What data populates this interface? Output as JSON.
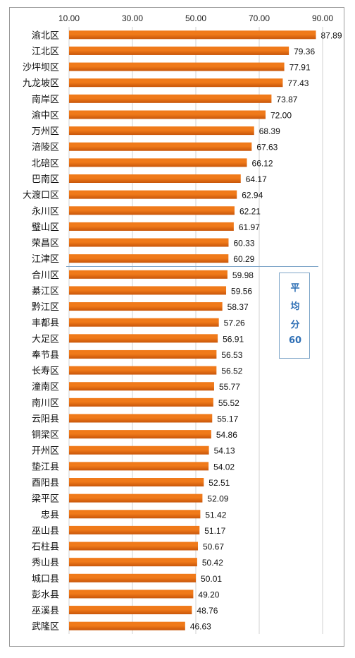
{
  "chart_data": {
    "type": "bar",
    "orientation": "horizontal",
    "categories": [
      "渝北区",
      "江北区",
      "沙坪坝区",
      "九龙坡区",
      "南岸区",
      "渝中区",
      "万州区",
      "涪陵区",
      "北碚区",
      "巴南区",
      "大渡口区",
      "永川区",
      "璧山区",
      "荣昌区",
      "江津区",
      "合川区",
      "綦江区",
      "黔江区",
      "丰都县",
      "大足区",
      "奉节县",
      "长寿区",
      "潼南区",
      "南川区",
      "云阳县",
      "铜梁区",
      "开州区",
      "垫江县",
      "酉阳县",
      "梁平区",
      "忠县",
      "巫山县",
      "石柱县",
      "秀山县",
      "城口县",
      "彭水县",
      "巫溪县",
      "武隆区"
    ],
    "values": [
      87.89,
      79.36,
      77.91,
      77.43,
      73.87,
      72.0,
      68.39,
      67.63,
      66.12,
      64.17,
      62.94,
      62.21,
      61.97,
      60.33,
      60.29,
      59.98,
      59.56,
      58.37,
      57.26,
      56.91,
      56.53,
      56.52,
      55.77,
      55.52,
      55.17,
      54.86,
      54.13,
      54.02,
      52.51,
      52.09,
      51.42,
      51.17,
      50.67,
      50.42,
      50.01,
      49.2,
      48.76,
      46.63
    ],
    "value_labels": [
      "87.89",
      "79.36",
      "77.91",
      "77.43",
      "73.87",
      "72.00",
      "68.39",
      "67.63",
      "66.12",
      "64.17",
      "62.94",
      "62.21",
      "61.97",
      "60.33",
      "60.29",
      "59.98",
      "59.56",
      "58.37",
      "57.26",
      "56.91",
      "56.53",
      "56.52",
      "55.77",
      "55.52",
      "55.17",
      "54.86",
      "54.13",
      "54.02",
      "52.51",
      "52.09",
      "51.42",
      "51.17",
      "50.67",
      "50.42",
      "50.01",
      "49.20",
      "48.76",
      "46.63"
    ],
    "xlim": [
      10,
      90
    ],
    "xticks": [
      "10.00",
      "30.00",
      "50.00",
      "70.00",
      "90.00"
    ],
    "xtick_values": [
      10,
      30,
      50,
      70,
      90
    ],
    "axis_position": "top",
    "grid": true,
    "bar_color": "#f07a1a",
    "bar_color_dark": "#c8560a",
    "grid_color": "#d0d0d0",
    "reference_line": {
      "value": 60,
      "color": "#7fa6c9",
      "after_category": "江津区"
    },
    "annotation": {
      "lines": [
        "平",
        "均",
        "分",
        "60"
      ],
      "color": "#2e6fb5"
    }
  }
}
